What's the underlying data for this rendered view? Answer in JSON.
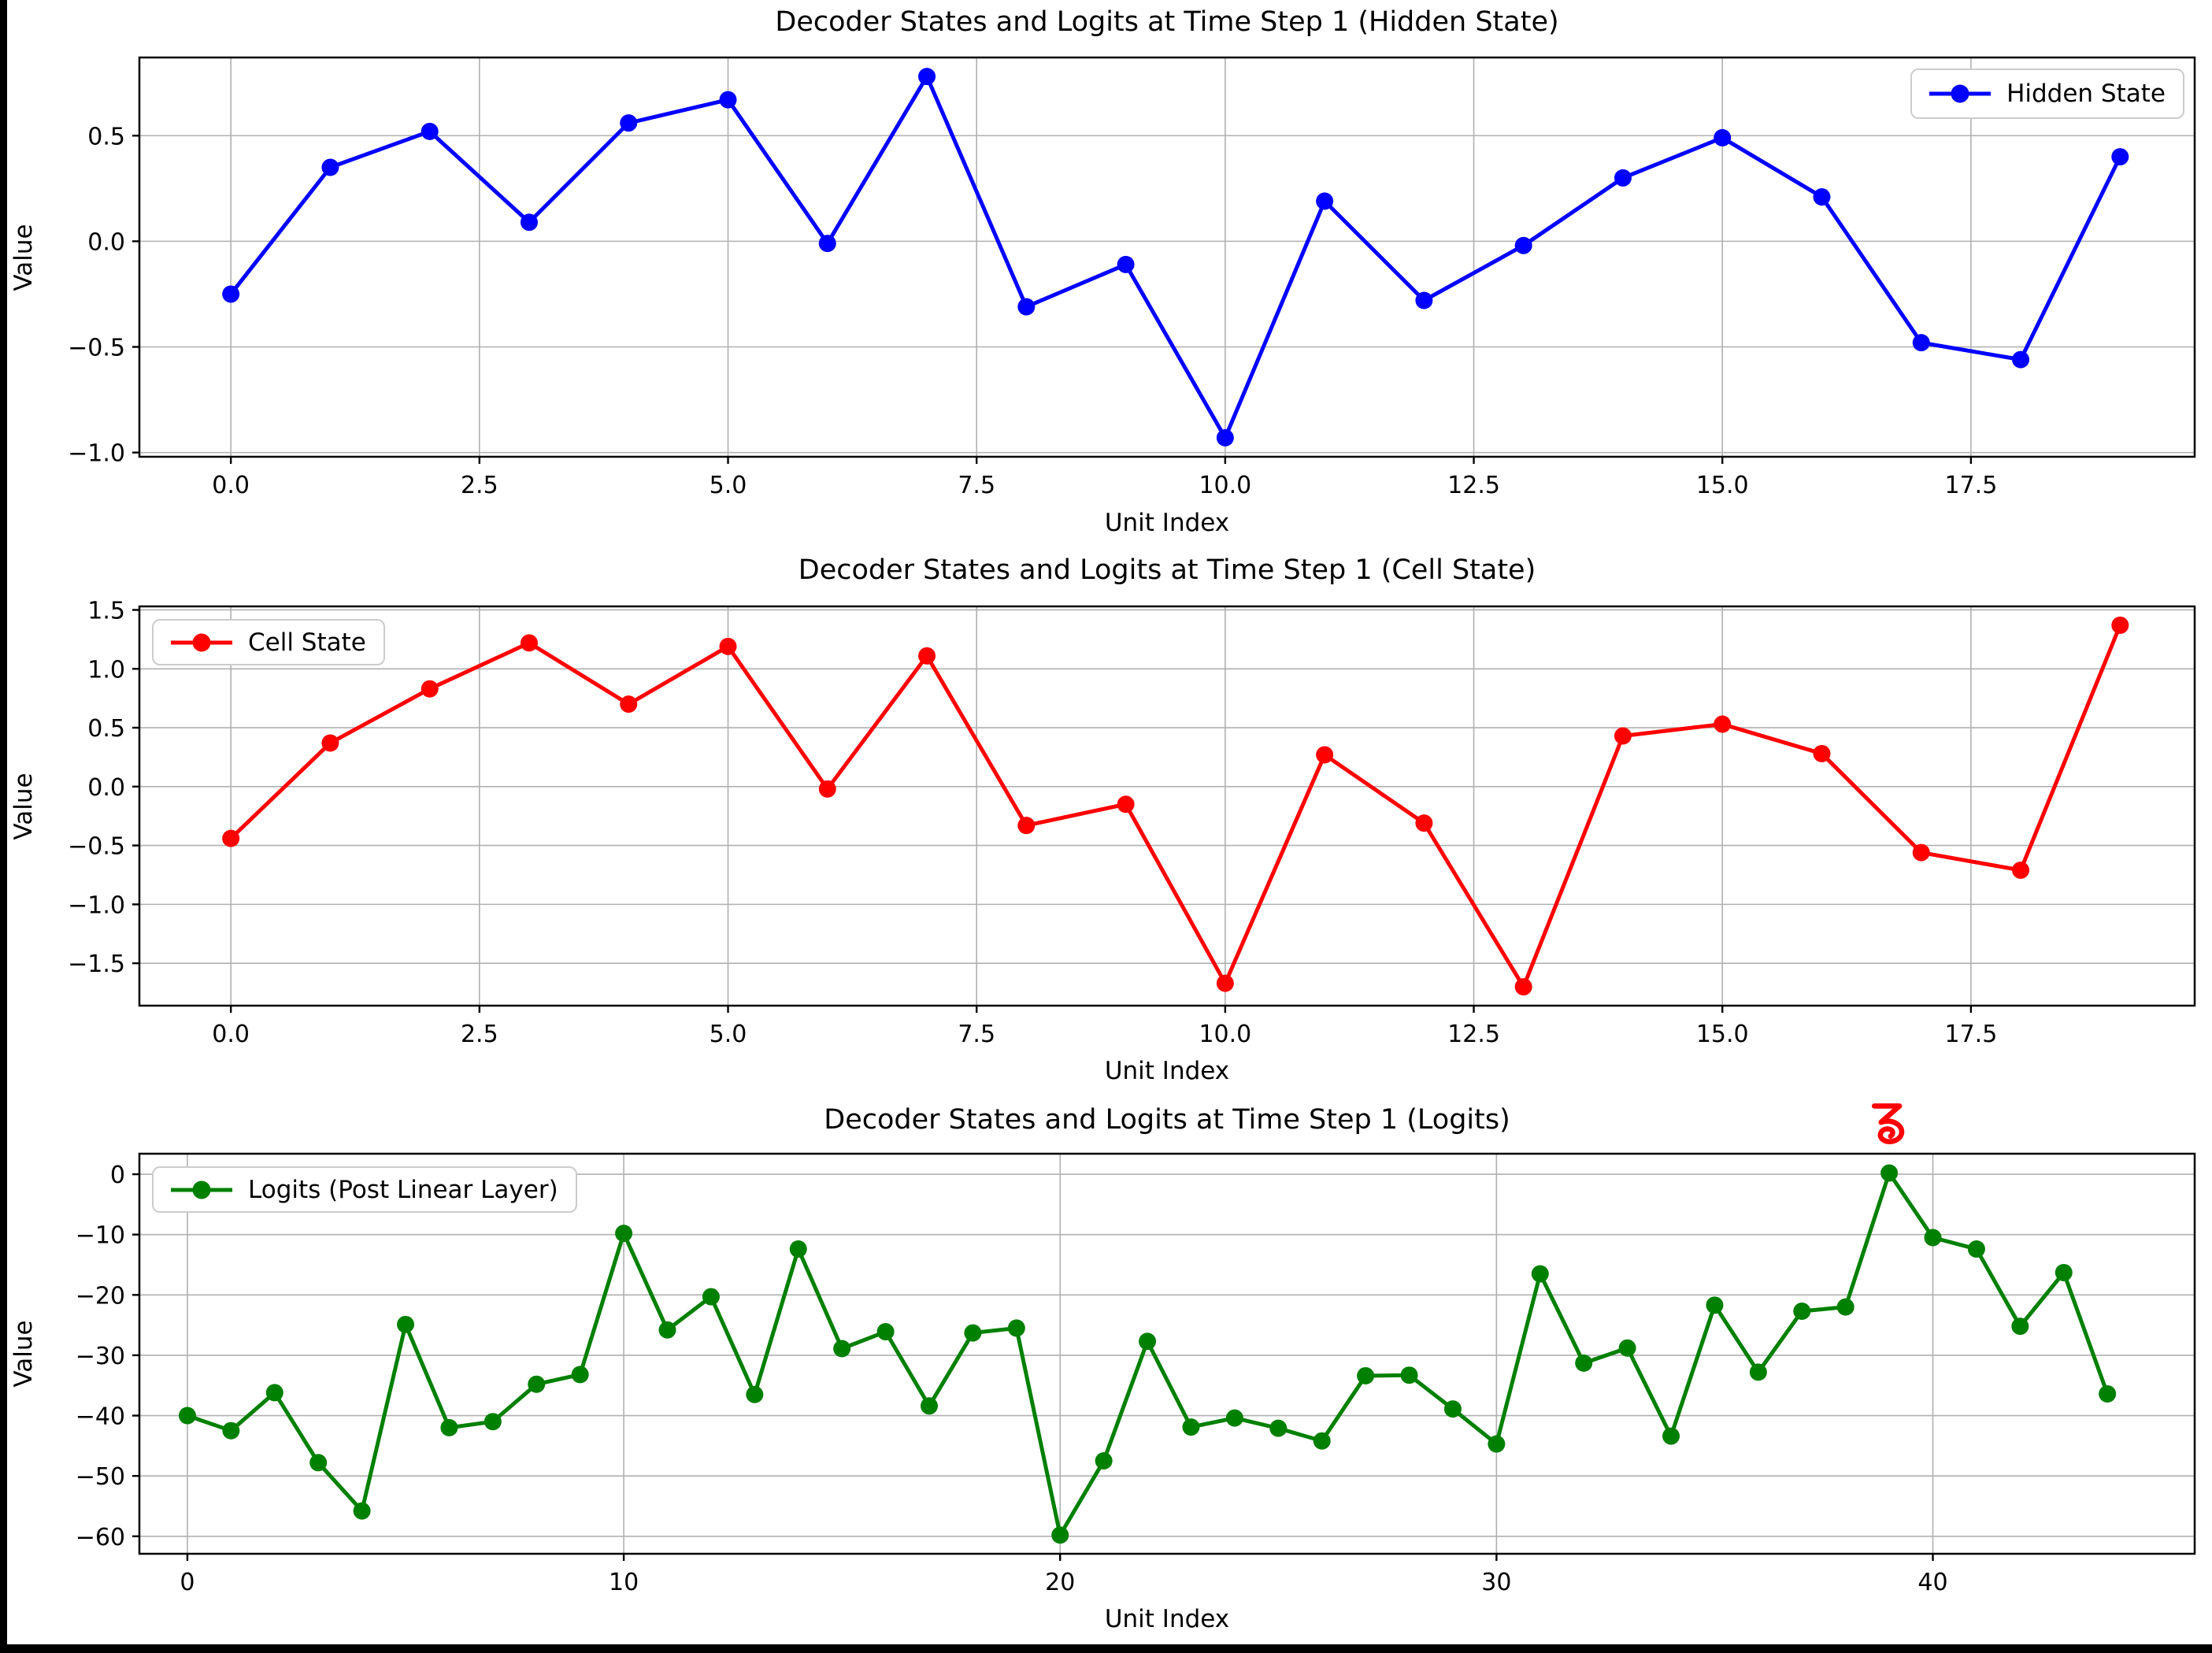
{
  "figure": {
    "background": "#ffffff",
    "frame_color": "#000000",
    "grid_color": "#b0b0b0",
    "axis_color": "#000000"
  },
  "chart_data": [
    {
      "type": "line",
      "title": "Decoder States and Logits at Time Step 1 (Hidden State)",
      "xlabel": "Unit Index",
      "ylabel": "Value",
      "legend": {
        "label": "Hidden State",
        "position": "upper-right"
      },
      "color": "#0000ff",
      "marker": "o",
      "grid": true,
      "x": [
        0,
        1,
        2,
        3,
        4,
        5,
        6,
        7,
        8,
        9,
        10,
        11,
        12,
        13,
        14,
        15,
        16,
        17,
        18,
        19
      ],
      "values": [
        -0.25,
        0.35,
        0.52,
        0.09,
        0.56,
        0.67,
        -0.01,
        0.78,
        -0.31,
        -0.11,
        -0.93,
        0.19,
        -0.28,
        -0.02,
        0.3,
        0.49,
        0.21,
        -0.48,
        -0.56,
        0.4
      ],
      "xlim": [
        -0.92,
        19.75
      ],
      "ylim": [
        -1.02,
        0.87
      ],
      "xticks": {
        "values": [
          0,
          2.5,
          5,
          7.5,
          10,
          12.5,
          15,
          17.5
        ],
        "labels": [
          "0.0",
          "2.5",
          "5.0",
          "7.5",
          "10.0",
          "12.5",
          "15.0",
          "17.5"
        ]
      },
      "yticks": {
        "values": [
          0.5,
          0.0,
          -0.5,
          -1.0
        ],
        "labels": [
          "0.5",
          "0.0",
          "−0.5",
          "−1.0"
        ]
      }
    },
    {
      "type": "line",
      "title": "Decoder States and Logits at Time Step 1 (Cell State)",
      "xlabel": "Unit Index",
      "ylabel": "Value",
      "legend": {
        "label": "Cell State",
        "position": "upper-left"
      },
      "color": "#ff0000",
      "marker": "o",
      "grid": true,
      "x": [
        0,
        1,
        2,
        3,
        4,
        5,
        6,
        7,
        8,
        9,
        10,
        11,
        12,
        13,
        14,
        15,
        16,
        17,
        18,
        19
      ],
      "values": [
        -0.44,
        0.37,
        0.83,
        1.22,
        0.7,
        1.19,
        -0.02,
        1.11,
        -0.33,
        -0.15,
        -1.67,
        0.27,
        -0.31,
        -1.7,
        0.43,
        0.53,
        0.28,
        -0.56,
        -0.71,
        1.37
      ],
      "xlim": [
        -0.92,
        19.75
      ],
      "ylim": [
        -1.86,
        1.53
      ],
      "xticks": {
        "values": [
          0,
          2.5,
          5,
          7.5,
          10,
          12.5,
          15,
          17.5
        ],
        "labels": [
          "0.0",
          "2.5",
          "5.0",
          "7.5",
          "10.0",
          "12.5",
          "15.0",
          "17.5"
        ]
      },
      "yticks": {
        "values": [
          1.5,
          1.0,
          0.5,
          0.0,
          -0.5,
          -1.0,
          -1.5
        ],
        "labels": [
          "1.5",
          "1.0",
          "0.5",
          "0.0",
          "−0.5",
          "−1.0",
          "−1.5"
        ]
      }
    },
    {
      "type": "line",
      "title": "Decoder States and Logits at Time Step 1 (Logits)",
      "xlabel": "Unit Index",
      "ylabel": "Value",
      "legend": {
        "label": "Logits (Post Linear Layer)",
        "position": "upper-left"
      },
      "color": "#008000",
      "marker": "o",
      "grid": true,
      "x": [
        0,
        1,
        2,
        3,
        4,
        5,
        6,
        7,
        8,
        9,
        10,
        11,
        12,
        13,
        14,
        15,
        16,
        17,
        18,
        19,
        20,
        21,
        22,
        23,
        24,
        25,
        26,
        27,
        28,
        29,
        30,
        31,
        32,
        33,
        34,
        35,
        36,
        37,
        38,
        39,
        40,
        41,
        42,
        43,
        44
      ],
      "values": [
        -40.0,
        -42.5,
        -36.2,
        -47.8,
        -55.8,
        -24.9,
        -42.0,
        -41.0,
        -34.8,
        -33.2,
        -9.8,
        -25.8,
        -20.3,
        -36.5,
        -12.4,
        -28.9,
        -26.1,
        -38.4,
        -26.3,
        -25.5,
        -59.8,
        -47.5,
        -27.7,
        -41.9,
        -40.4,
        -42.1,
        -44.2,
        -33.4,
        -33.3,
        -38.9,
        -44.7,
        -16.5,
        -31.3,
        -28.8,
        -43.4,
        -21.7,
        -32.8,
        -22.7,
        -22.0,
        0.2,
        -10.5,
        -12.4,
        -25.2,
        -16.3,
        -36.4
      ],
      "xlim": [
        -1.1,
        46.0
      ],
      "ylim": [
        -62.9,
        3.4
      ],
      "xticks": {
        "values": [
          0,
          10,
          20,
          30,
          40
        ],
        "labels": [
          "0",
          "10",
          "20",
          "30",
          "40"
        ]
      },
      "yticks": {
        "values": [
          0,
          -10,
          -20,
          -30,
          -40,
          -50,
          -60
        ],
        "labels": [
          "0",
          "−10",
          "−20",
          "−30",
          "−40",
          "−50",
          "−60"
        ]
      },
      "annotation": {
        "text": "る",
        "x": 39,
        "color": "#ff0000"
      }
    }
  ]
}
